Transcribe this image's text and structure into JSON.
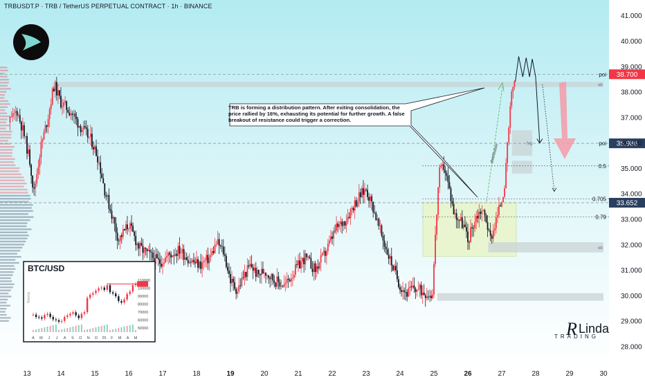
{
  "header": {
    "title": "TRBUSDT.P · TRB / TetherUS PERPETUAL CONTRACT · 1h · BINANCE"
  },
  "colors": {
    "up": "#f23645",
    "down": "#131722",
    "bg_top": "#b2ebf2",
    "bg_bottom": "#ffffff",
    "accent_red": "#f23645",
    "accent_navy": "#2a3f5f",
    "green_line": "#4caf50",
    "zone_green": "#e8f5c8",
    "zone_gray": "#c9d3d6",
    "arrow_pink": "#f49aa8"
  },
  "chart_data": {
    "type": "candlestick",
    "xlabel": "",
    "ylabel": "",
    "ylim": [
      27.4,
      41.4
    ],
    "x_ticks": [
      "13",
      "14",
      "15",
      "16",
      "17",
      "18",
      "19",
      "20",
      "21",
      "22",
      "23",
      "24",
      "25",
      "26",
      "27",
      "28",
      "29",
      "30"
    ],
    "y_ticks": [
      "41.000",
      "40.000",
      "39.000",
      "38.000",
      "37.000",
      "36.000",
      "35.000",
      "34.000",
      "33.000",
      "32.000",
      "31.000",
      "30.000",
      "29.000",
      "28.000"
    ],
    "price_path": [
      [
        12.5,
        36.8
      ],
      [
        12.7,
        37.3
      ],
      [
        12.9,
        36.4
      ],
      [
        13.1,
        35.2
      ],
      [
        13.2,
        34.0
      ],
      [
        13.4,
        35.8
      ],
      [
        13.6,
        36.9
      ],
      [
        13.8,
        38.3
      ],
      [
        14.0,
        37.6
      ],
      [
        14.3,
        37.2
      ],
      [
        14.6,
        36.6
      ],
      [
        14.9,
        36.1
      ],
      [
        15.1,
        35.4
      ],
      [
        15.3,
        34.1
      ],
      [
        15.5,
        33.2
      ],
      [
        15.7,
        32.2
      ],
      [
        16.0,
        32.8
      ],
      [
        16.3,
        31.9
      ],
      [
        16.6,
        31.6
      ],
      [
        16.9,
        31.3
      ],
      [
        17.2,
        31.6
      ],
      [
        17.5,
        31.8
      ],
      [
        17.8,
        31.4
      ],
      [
        18.1,
        31.2
      ],
      [
        18.4,
        31.5
      ],
      [
        18.6,
        32.1
      ],
      [
        18.8,
        31.7
      ],
      [
        19.0,
        30.6
      ],
      [
        19.2,
        30.2
      ],
      [
        19.4,
        30.8
      ],
      [
        19.6,
        31.2
      ],
      [
        19.8,
        30.8
      ],
      [
        20.0,
        31.0
      ],
      [
        20.3,
        30.6
      ],
      [
        20.6,
        30.4
      ],
      [
        20.9,
        31.0
      ],
      [
        21.2,
        31.5
      ],
      [
        21.5,
        31.0
      ],
      [
        21.8,
        31.7
      ],
      [
        22.1,
        32.6
      ],
      [
        22.4,
        33.0
      ],
      [
        22.6,
        33.5
      ],
      [
        22.8,
        33.9
      ],
      [
        23.0,
        34.2
      ],
      [
        23.2,
        33.5
      ],
      [
        23.4,
        32.6
      ],
      [
        23.6,
        31.8
      ],
      [
        23.8,
        31.1
      ],
      [
        24.0,
        30.4
      ],
      [
        24.2,
        30.1
      ],
      [
        24.4,
        30.3
      ],
      [
        24.6,
        30.2
      ],
      [
        24.8,
        30.1
      ],
      [
        24.95,
        30.0
      ],
      [
        25.05,
        32.5
      ],
      [
        25.15,
        34.8
      ],
      [
        25.3,
        35.1
      ],
      [
        25.45,
        34.2
      ],
      [
        25.6,
        33.2
      ],
      [
        25.75,
        33.0
      ],
      [
        25.9,
        32.7
      ],
      [
        26.0,
        32.1
      ],
      [
        26.1,
        32.6
      ],
      [
        26.25,
        33.1
      ],
      [
        26.4,
        33.4
      ],
      [
        26.55,
        33.0
      ],
      [
        26.65,
        32.2
      ],
      [
        26.75,
        32.6
      ],
      [
        26.9,
        33.3
      ],
      [
        27.0,
        33.8
      ],
      [
        27.1,
        34.5
      ],
      [
        27.2,
        36.5
      ],
      [
        27.3,
        38.0
      ],
      [
        27.38,
        38.5
      ]
    ],
    "projection_path": [
      [
        27.4,
        38.4
      ],
      [
        27.5,
        39.4
      ],
      [
        27.62,
        38.6
      ],
      [
        27.72,
        39.35
      ],
      [
        27.82,
        38.6
      ],
      [
        27.9,
        39.3
      ],
      [
        28.0,
        38.6
      ],
      [
        28.12,
        36.0
      ]
    ],
    "dotted_path": [
      [
        28.2,
        38.3
      ],
      [
        28.55,
        34.1
      ]
    ],
    "levels": [
      {
        "label": "poi",
        "price": 38.7,
        "price_label": "38.700",
        "box_color": "#f23645"
      },
      {
        "label": "poi",
        "price": 35.986,
        "price_label": "35.986",
        "box_color": "#2a3f5f"
      },
      {
        "label": "0.5",
        "price": 35.1,
        "price_label": ""
      },
      {
        "label": "0.705",
        "price": 33.8,
        "price_label": ""
      },
      {
        "label": "",
        "price": 33.652,
        "price_label": "33.652",
        "box_color": "#2a3f5f"
      },
      {
        "label": "0.79",
        "price": 33.1,
        "price_label": ""
      }
    ],
    "zones": [
      {
        "label": "ob",
        "x0": 13.75,
        "x1": 30.0,
        "y0": 38.2,
        "y1": 38.4
      },
      {
        "label": "fvg",
        "x0": 27.3,
        "x1": 27.9,
        "y0": 35.5,
        "y1": 36.5
      },
      {
        "label": "",
        "x0": 27.3,
        "x1": 27.9,
        "y0": 34.8,
        "y1": 35.3
      },
      {
        "label": "ob",
        "x0": 26.6,
        "x1": 30.0,
        "y0": 31.7,
        "y1": 32.1
      },
      {
        "label": "",
        "x0": 25.1,
        "x1": 30.0,
        "y0": 29.8,
        "y1": 30.1
      }
    ],
    "annotation": "TRB is forming a distribution pattern. After exiting consolidation, the price rallied by 16%, exhausting its potential for further growth. A false breakout of resistance could trigger a correction.",
    "pattern_label": "distribution",
    "inset": {
      "title": "BTC/USD",
      "side_label": "Weekly",
      "y_ticks": [
        "110000",
        "100000",
        "90000",
        "80000",
        "70000",
        "60000",
        "50000"
      ],
      "x_ticks": [
        "A",
        "M",
        "J",
        "J",
        "A",
        "S",
        "O",
        "N",
        "D",
        "25",
        "F",
        "M",
        "A",
        "M"
      ],
      "ylim": [
        45000,
        118000
      ],
      "values": [
        67000,
        64000,
        63500,
        62000,
        66500,
        68000,
        64000,
        61000,
        60000,
        58000,
        59000,
        64000,
        66000,
        68000,
        70000,
        66000,
        62500,
        68000,
        70000,
        88000,
        92000,
        94000,
        97000,
        100000,
        101000,
        98000,
        104000,
        95000,
        93500,
        90000,
        84000,
        82000,
        86000,
        93000,
        96000,
        104000,
        105500
      ]
    }
  },
  "brand": {
    "line1": "Linda",
    "line2": "TRADING"
  }
}
